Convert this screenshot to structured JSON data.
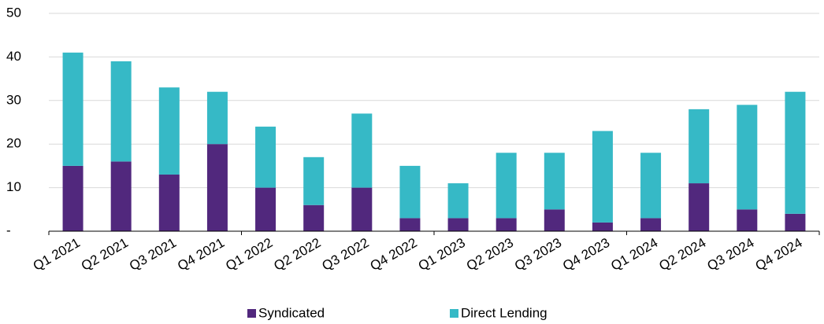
{
  "chart_data": {
    "type": "stacked_bar",
    "categories": [
      "Q1 2021",
      "Q2 2021",
      "Q3 2021",
      "Q4 2021",
      "Q1 2022",
      "Q2 2022",
      "Q3 2022",
      "Q4 2022",
      "Q1 2023",
      "Q2 2023",
      "Q3 2023",
      "Q4 2023",
      "Q1 2024",
      "Q2 2024",
      "Q3 2024",
      "Q4 2024"
    ],
    "series": [
      {
        "name": "Syndicated",
        "color": "#51287d",
        "values": [
          15,
          16,
          13,
          20,
          10,
          6,
          10,
          3,
          3,
          3,
          5,
          2,
          3,
          11,
          5,
          4
        ]
      },
      {
        "name": "Direct Lending",
        "color": "#36b9c6",
        "values": [
          26,
          23,
          20,
          12,
          14,
          11,
          17,
          12,
          8,
          15,
          13,
          21,
          15,
          17,
          24,
          28
        ]
      }
    ],
    "ylim": [
      0,
      50
    ],
    "yticks": [
      {
        "value": 0,
        "label": "-"
      },
      10,
      20,
      30,
      40,
      50
    ],
    "grid": true,
    "legend": "bottom"
  }
}
